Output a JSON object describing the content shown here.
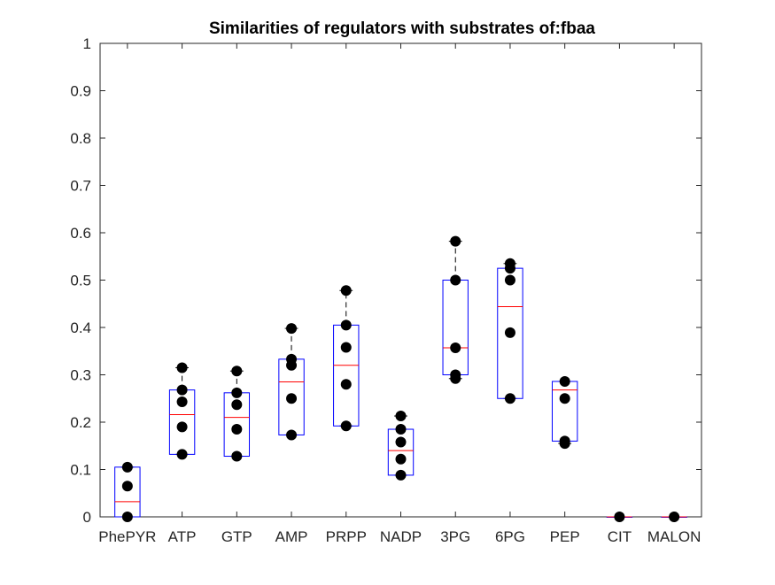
{
  "chart_data": {
    "type": "box",
    "title": "Similarities of regulators with substrates of:fbaa",
    "xlabel": "",
    "ylabel": "",
    "ylim": [
      0,
      1
    ],
    "yticks": [
      "0",
      "0.1",
      "0.2",
      "0.3",
      "0.4",
      "0.5",
      "0.6",
      "0.7",
      "0.8",
      "0.9",
      "1"
    ],
    "categories": [
      "PhePYR",
      "ATP",
      "GTP",
      "AMP",
      "PRPP",
      "NADP",
      "3PG",
      "6PG",
      "PEP",
      "CIT",
      "MALON"
    ],
    "boxes": [
      {
        "name": "PhePYR",
        "q1": 0.0,
        "median": 0.032,
        "q3": 0.105,
        "whisker_low": 0.0,
        "whisker_high": 0.105,
        "points": [
          0.0,
          0.065,
          0.105
        ]
      },
      {
        "name": "ATP",
        "q1": 0.132,
        "median": 0.216,
        "q3": 0.268,
        "whisker_low": 0.132,
        "whisker_high": 0.315,
        "points": [
          0.132,
          0.19,
          0.243,
          0.268,
          0.315
        ]
      },
      {
        "name": "GTP",
        "q1": 0.128,
        "median": 0.21,
        "q3": 0.262,
        "whisker_low": 0.128,
        "whisker_high": 0.308,
        "points": [
          0.128,
          0.185,
          0.237,
          0.262,
          0.308
        ]
      },
      {
        "name": "AMP",
        "q1": 0.173,
        "median": 0.285,
        "q3": 0.333,
        "whisker_low": 0.173,
        "whisker_high": 0.398,
        "points": [
          0.173,
          0.25,
          0.32,
          0.333,
          0.398
        ]
      },
      {
        "name": "PRPP",
        "q1": 0.192,
        "median": 0.32,
        "q3": 0.405,
        "whisker_low": 0.192,
        "whisker_high": 0.478,
        "points": [
          0.192,
          0.28,
          0.358,
          0.405,
          0.478
        ]
      },
      {
        "name": "NADP",
        "q1": 0.088,
        "median": 0.14,
        "q3": 0.185,
        "whisker_low": 0.088,
        "whisker_high": 0.213,
        "points": [
          0.088,
          0.122,
          0.158,
          0.185,
          0.213
        ]
      },
      {
        "name": "3PG",
        "q1": 0.3,
        "median": 0.357,
        "q3": 0.5,
        "whisker_low": 0.292,
        "whisker_high": 0.582,
        "points": [
          0.292,
          0.3,
          0.357,
          0.5,
          0.582
        ]
      },
      {
        "name": "6PG",
        "q1": 0.25,
        "median": 0.444,
        "q3": 0.525,
        "whisker_low": 0.25,
        "whisker_high": 0.535,
        "points": [
          0.25,
          0.389,
          0.5,
          0.525,
          0.535
        ]
      },
      {
        "name": "PEP",
        "q1": 0.16,
        "median": 0.268,
        "q3": 0.286,
        "whisker_low": 0.155,
        "whisker_high": 0.286,
        "points": [
          0.155,
          0.16,
          0.25,
          0.286
        ]
      },
      {
        "name": "CIT",
        "q1": 0.0,
        "median": 0.0,
        "q3": 0.0,
        "whisker_low": 0.0,
        "whisker_high": 0.0,
        "points": [
          0.0
        ]
      },
      {
        "name": "MALON",
        "q1": 0.0,
        "median": 0.0,
        "q3": 0.0,
        "whisker_low": 0.0,
        "whisker_high": 0.0,
        "points": [
          0.0
        ]
      }
    ],
    "grid": false,
    "legend": "none",
    "colors": {
      "box": "#0000ff",
      "median": "#ff0000",
      "whisker": "#000000",
      "points": "#000000",
      "axes": "#262626"
    }
  }
}
